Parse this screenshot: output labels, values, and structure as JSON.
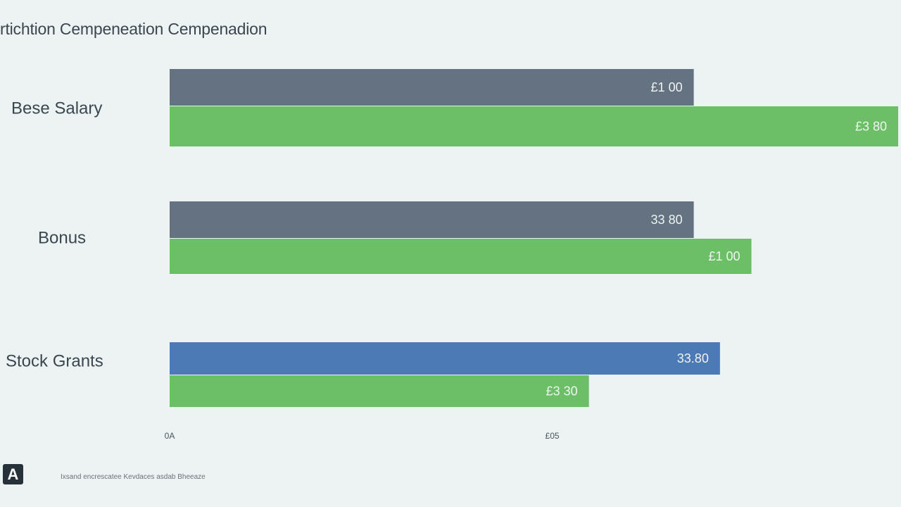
{
  "chart_data": {
    "type": "bar",
    "orientation": "horizontal",
    "title": "rtichtion Cempeneation Cempenadion",
    "categories": [
      "Bese Salary",
      "Bonus",
      "Stock Grants"
    ],
    "series": [
      {
        "color": "#647282",
        "values": [
          100,
          100,
          null
        ],
        "labels": [
          "£1 00",
          "33 80",
          ""
        ]
      },
      {
        "color": "#4c7ab4",
        "values": [
          null,
          null,
          105
        ],
        "labels": [
          "",
          "",
          "33.80"
        ]
      },
      {
        "color": "#6cbf66",
        "values": [
          139,
          111,
          80
        ],
        "labels": [
          "£3 80",
          "£1 00",
          "£3 30"
        ]
      }
    ],
    "x_ticks": [
      {
        "value": 0,
        "label": "0A"
      },
      {
        "value": 73,
        "label": "£05"
      }
    ],
    "xlim": [
      0,
      139
    ],
    "grid": false,
    "legend": "none"
  },
  "logo": {
    "text": "A"
  },
  "footnote": "Ixsand encrescatee Kevdaces asdab Bheeaze"
}
